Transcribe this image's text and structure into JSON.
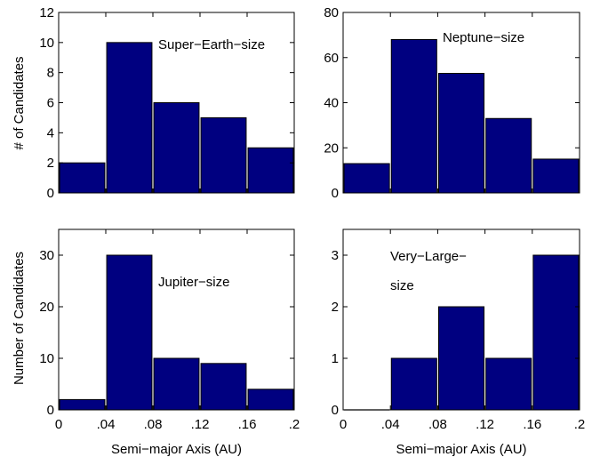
{
  "figure": {
    "ylabel_top": "# of Candidates",
    "ylabel_bottom": "Number of Candidates"
  },
  "colors": {
    "bar": "#000080",
    "axis": "#000000",
    "background": "#ffffff"
  },
  "chart_data": [
    {
      "type": "bar",
      "annotation": [
        "Super−Earth−size"
      ],
      "categories": [
        0.02,
        0.06,
        0.1,
        0.14,
        0.18
      ],
      "values": [
        2,
        10,
        6,
        5,
        3
      ],
      "bin_edges": [
        0,
        0.04,
        0.08,
        0.12,
        0.16,
        0.2
      ],
      "xlim": [
        0,
        0.2
      ],
      "ylim": [
        0,
        12
      ],
      "yticks": [
        0,
        2,
        4,
        6,
        8,
        10,
        12
      ],
      "xticks": [],
      "xlabel": "",
      "ylabel": "# of Candidates"
    },
    {
      "type": "bar",
      "annotation": [
        "Neptune−size"
      ],
      "categories": [
        0.02,
        0.06,
        0.1,
        0.14,
        0.18
      ],
      "values": [
        13,
        68,
        53,
        33,
        15
      ],
      "bin_edges": [
        0,
        0.04,
        0.08,
        0.12,
        0.16,
        0.2
      ],
      "xlim": [
        0,
        0.2
      ],
      "ylim": [
        0,
        80
      ],
      "yticks": [
        0,
        20,
        40,
        60,
        80
      ],
      "xticks": [],
      "xlabel": "",
      "ylabel": ""
    },
    {
      "type": "bar",
      "annotation": [
        "Jupiter−size"
      ],
      "categories": [
        0.02,
        0.06,
        0.1,
        0.14,
        0.18
      ],
      "values": [
        2,
        30,
        10,
        9,
        4
      ],
      "bin_edges": [
        0,
        0.04,
        0.08,
        0.12,
        0.16,
        0.2
      ],
      "xlim": [
        0,
        0.2
      ],
      "ylim": [
        0,
        35
      ],
      "yticks": [
        0,
        10,
        20,
        30
      ],
      "xticks": [
        "0",
        ".04",
        ".08",
        ".12",
        ".16",
        ".2"
      ],
      "xlabel": "Semi−major Axis (AU)",
      "ylabel": "Number of Candidates"
    },
    {
      "type": "bar",
      "annotation": [
        "Very−Large−",
        "size"
      ],
      "categories": [
        0.02,
        0.06,
        0.1,
        0.14,
        0.18
      ],
      "values": [
        0,
        1,
        2,
        1,
        3
      ],
      "bin_edges": [
        0,
        0.04,
        0.08,
        0.12,
        0.16,
        0.2
      ],
      "xlim": [
        0,
        0.2
      ],
      "ylim": [
        0,
        3.5
      ],
      "yticks": [
        0,
        1,
        2,
        3
      ],
      "xticks": [
        "0",
        ".04",
        ".08",
        ".12",
        ".16",
        ".2"
      ],
      "xlabel": "Semi−major Axis (AU)",
      "ylabel": ""
    }
  ]
}
